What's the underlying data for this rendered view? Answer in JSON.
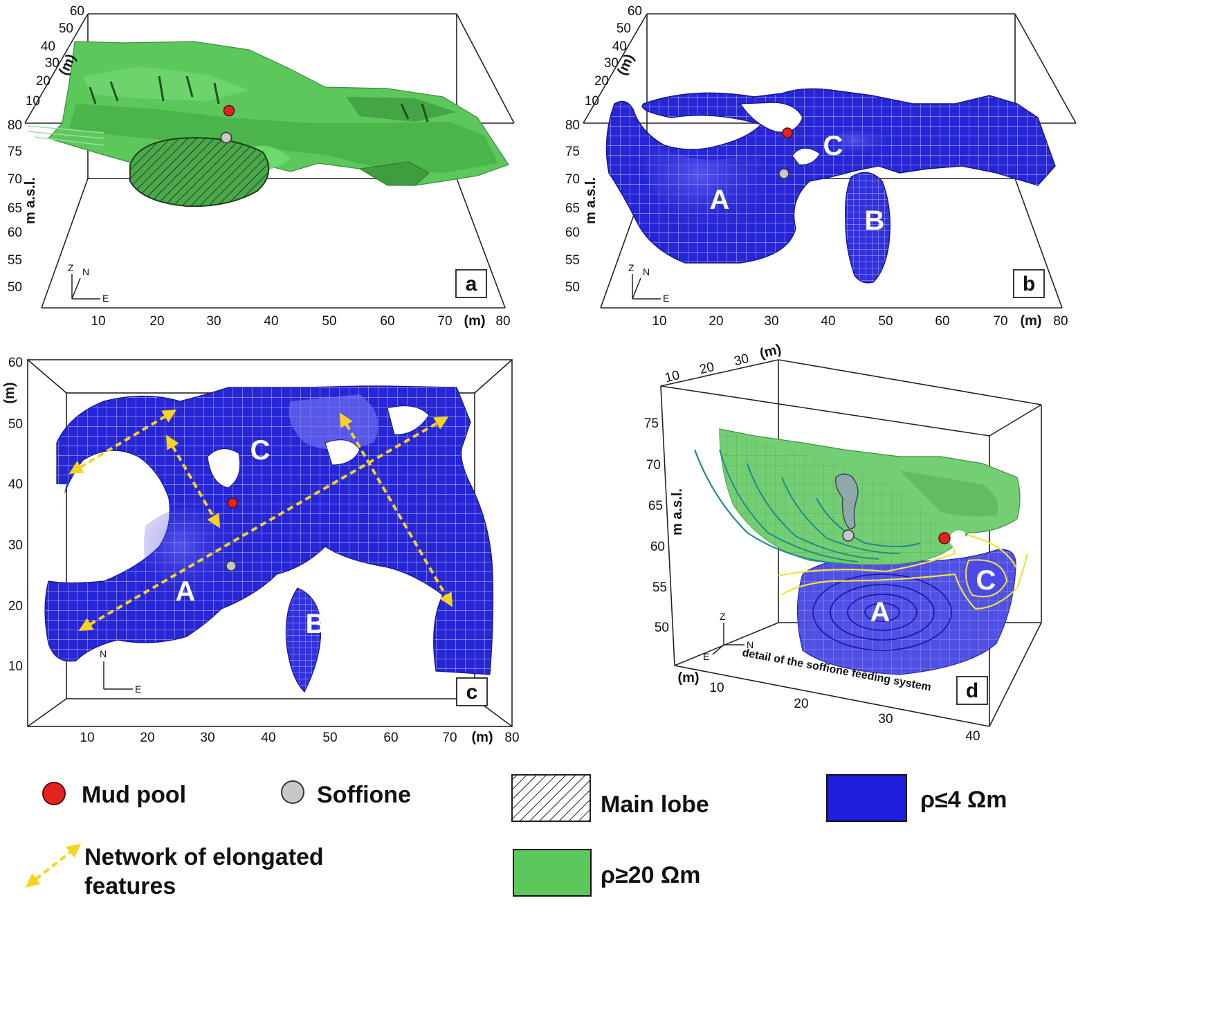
{
  "panels": {
    "a": {
      "label": "a",
      "x_ticks": [
        "10",
        "20",
        "30",
        "40",
        "50",
        "60",
        "70",
        "80"
      ],
      "x_unit": "(m)",
      "y_ticks": [
        "10",
        "20",
        "30",
        "40",
        "50",
        "60"
      ],
      "y_unit": "(m)",
      "z_ticks": [
        "80",
        "75",
        "70",
        "65",
        "60",
        "55",
        "50"
      ],
      "z_label": "m a.s.l.",
      "compass": {
        "z": "Z",
        "n": "N",
        "e": "E"
      },
      "colors": {
        "body": "#5cc85c",
        "shade": "#3f9e3f"
      }
    },
    "b": {
      "label": "b",
      "x_ticks": [
        "10",
        "20",
        "30",
        "40",
        "50",
        "60",
        "70",
        "80"
      ],
      "x_unit": "(m)",
      "y_ticks": [
        "10",
        "20",
        "30",
        "40",
        "50",
        "60"
      ],
      "y_unit": "(m)",
      "z_ticks": [
        "80",
        "75",
        "70",
        "65",
        "60",
        "55",
        "50"
      ],
      "z_label": "m a.s.l.",
      "zones": [
        "A",
        "B",
        "C"
      ],
      "compass": {
        "z": "Z",
        "n": "N",
        "e": "E"
      },
      "colors": {
        "body": "#2a2ad8"
      }
    },
    "c": {
      "label": "c",
      "x_ticks": [
        "10",
        "20",
        "30",
        "40",
        "50",
        "60",
        "70",
        "80"
      ],
      "x_unit": "(m)",
      "y_ticks": [
        "60",
        "50",
        "40",
        "30",
        "20",
        "10"
      ],
      "y_unit": "(m)",
      "zones": [
        "A",
        "B",
        "C"
      ],
      "compass": {
        "n": "N",
        "e": "E"
      },
      "colors": {
        "body": "#2a2ad8",
        "arrows": "#f5d31f"
      }
    },
    "d": {
      "label": "d",
      "x_ticks": [
        "10",
        "20",
        "30",
        "40"
      ],
      "x_unit": "(m)",
      "y_ticks": [
        "10",
        "20",
        "30"
      ],
      "y_unit": "(m)",
      "z_ticks": [
        "75",
        "70",
        "65",
        "60",
        "55",
        "50"
      ],
      "z_label": "m a.s.l.",
      "zones": [
        "A",
        "C"
      ],
      "note": "detail of the soffione feeding system",
      "compass": {
        "z": "Z",
        "n": "N",
        "e": "E"
      },
      "colors": {
        "green": "#6fcf6f",
        "blue": "#3838e0",
        "contour_yellow": "#f3e23a"
      }
    }
  },
  "legend": {
    "mud_pool": "Mud pool",
    "soffione": "Soffione",
    "main_lobe": "Main lobe",
    "low_res": "ρ≤4 Ωm",
    "network": "Network of elongated features",
    "network_line1": "Network of elongated",
    "network_line2": "features",
    "high_res": "ρ≥20 Ωm",
    "colors": {
      "mud_pool": "#e32222",
      "soffione": "#c8c8c8",
      "low_res": "#1f1fdd",
      "high_res": "#5cc85c",
      "arrow": "#f5d31f"
    }
  }
}
